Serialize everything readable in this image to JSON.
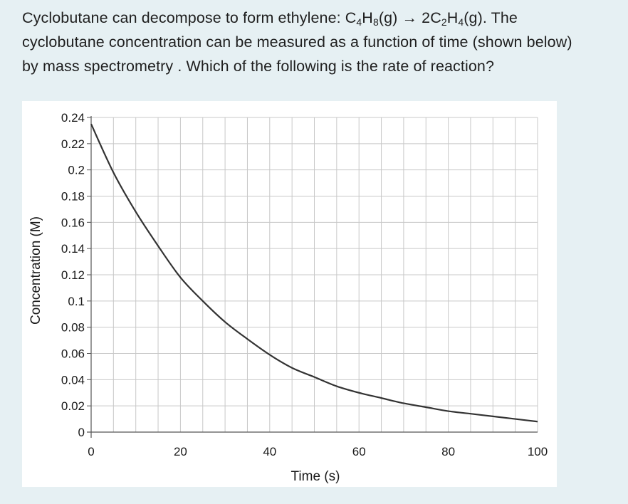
{
  "question": {
    "line1_a": "Cyclobutane can decompose to form ethylene: C",
    "sub_c4": "4",
    "line1_b": "H",
    "sub_h8": "8",
    "line1_c": "(g) → 2C",
    "sub_c2": "2",
    "line1_d": "H",
    "sub_h4": "4",
    "line1_e": "(g). The",
    "line2": "cyclobutane concentration can be measured as a function of time (shown below)",
    "line3": "by mass spectrometry . Which of the following is the rate of reaction?"
  },
  "chart_data": {
    "type": "line",
    "xlabel": "Time (s)",
    "ylabel": "Concentration (M)",
    "xlim": [
      0,
      100
    ],
    "ylim": [
      0,
      0.24
    ],
    "x_ticks": [
      0,
      20,
      40,
      60,
      80,
      100
    ],
    "x_tick_labels": [
      "0",
      "20",
      "40",
      "60",
      "80",
      "100"
    ],
    "y_ticks": [
      0,
      0.02,
      0.04,
      0.06,
      0.08,
      0.1,
      0.12,
      0.14,
      0.16,
      0.18,
      0.2,
      0.22,
      0.24
    ],
    "y_tick_labels": [
      "0",
      "0.02",
      "0.04",
      "0.06",
      "0.08",
      "0.1",
      "0.12",
      "0.14",
      "0.16",
      "0.18",
      "0.2",
      "0.22",
      "0.24"
    ],
    "grid": true,
    "x_minor_step": 5,
    "series": [
      {
        "color": "#333333",
        "x": [
          0,
          5,
          10,
          15,
          20,
          25,
          30,
          35,
          40,
          45,
          50,
          55,
          60,
          65,
          70,
          75,
          80,
          85,
          90,
          95,
          100
        ],
        "y": [
          0.235,
          0.198,
          0.168,
          0.142,
          0.118,
          0.1,
          0.084,
          0.071,
          0.059,
          0.049,
          0.042,
          0.035,
          0.03,
          0.026,
          0.022,
          0.019,
          0.016,
          0.014,
          0.012,
          0.01,
          0.008
        ]
      }
    ]
  }
}
